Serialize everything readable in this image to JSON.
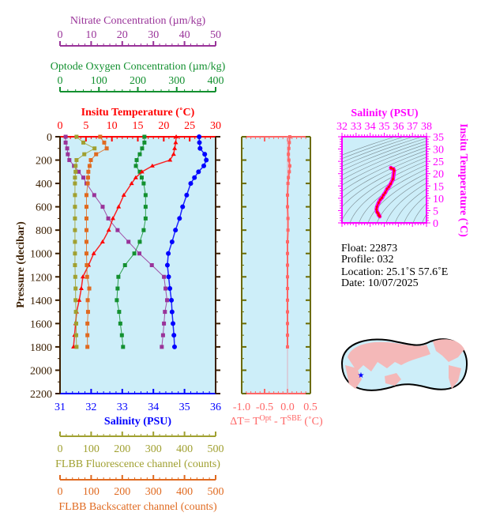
{
  "colors": {
    "nitrate": "#993399",
    "oxygen": "#139030",
    "temperature": "#ff0000",
    "salinity": "#0000ff",
    "fluorescence": "#a0a030",
    "backscatter": "#e06a20",
    "delta_t": "#ff6666",
    "ts": "#ff00ff",
    "pressure_axis": "#3a1e00",
    "dt_side_axis": "#6b6b00",
    "plot_background": "#cdeef9",
    "land": "#f4b8b8",
    "float_marker": "#0000ff"
  },
  "info": {
    "float": "Float:  22873",
    "profile": "Profile:  032",
    "location": "Location:  25.1˚S  57.6˚E",
    "date": "Date:  10/07/2025"
  },
  "map": {
    "marker_icon": "star-icon",
    "float_lat": -25.1,
    "float_lon": 57.6
  },
  "chart_data": [
    {
      "type": "line",
      "y_axis": {
        "label": "Pressure (decibar)",
        "range": [
          0,
          2200
        ],
        "reversed": true,
        "ticks": [
          0,
          200,
          400,
          600,
          800,
          1000,
          1200,
          1400,
          1600,
          1800,
          2000,
          2200
        ]
      },
      "pressure": [
        0,
        50,
        100,
        150,
        200,
        250,
        300,
        350,
        400,
        500,
        600,
        700,
        800,
        900,
        1000,
        1100,
        1200,
        1300,
        1400,
        1500,
        1600,
        1700,
        1800
      ],
      "series": [
        {
          "name": "Nitrate Concentration (µm/kg)",
          "key": "nitrate",
          "axis": "top",
          "range": [
            0,
            50
          ],
          "ticks": [
            0,
            10,
            20,
            30,
            40,
            50
          ],
          "values": [
            1.8,
            1.8,
            2.3,
            2.5,
            3,
            4.5,
            6,
            7.5,
            8.5,
            11,
            13.7,
            15.5,
            18.5,
            22,
            25.5,
            29.5,
            33.4,
            33.9,
            34.4,
            33.7,
            33.4,
            33.1,
            32.7
          ]
        },
        {
          "name": "Optode Oxygen Concentration (µm/kg)",
          "key": "oxygen",
          "axis": "top",
          "range": [
            0,
            400
          ],
          "ticks": [
            0,
            100,
            200,
            300,
            400
          ],
          "values": [
            217,
            217,
            211,
            205,
            197,
            195,
            205,
            210,
            215,
            220,
            220,
            220,
            215,
            205,
            191,
            167,
            150,
            148,
            146,
            152,
            155,
            159,
            162
          ]
        },
        {
          "name": "Insitu Temperature (˚C)",
          "key": "temperature",
          "axis": "top",
          "range": [
            0,
            30
          ],
          "ticks": [
            0,
            5,
            10,
            15,
            20,
            25,
            30
          ],
          "values": [
            22.4,
            22.3,
            22.1,
            21.9,
            21.2,
            17.8,
            15.8,
            14.6,
            13.8,
            12.3,
            11.3,
            10.2,
            9.4,
            8.2,
            6.5,
            5.5,
            4.4,
            4.1,
            3.7,
            3.2,
            3.0,
            2.8,
            2.6
          ]
        },
        {
          "name": "Salinity (PSU)",
          "key": "salinity",
          "axis": "bottom",
          "range": [
            31,
            36
          ],
          "ticks": [
            31,
            32,
            33,
            34,
            35,
            36
          ],
          "values": [
            35.47,
            35.48,
            35.5,
            35.65,
            35.7,
            35.62,
            35.45,
            35.32,
            35.2,
            35.07,
            34.94,
            34.84,
            34.71,
            34.6,
            34.48,
            34.45,
            34.49,
            34.53,
            34.58,
            34.6,
            34.63,
            34.66,
            34.68
          ]
        },
        {
          "name": "FLBB Fluorescence channel (counts)",
          "key": "fluorescence",
          "axis": "bottom",
          "range": [
            0,
            500
          ],
          "ticks": [
            0,
            100,
            200,
            300,
            400,
            500
          ],
          "values": [
            53,
            75,
            111,
            78,
            53,
            50,
            50,
            48,
            48,
            48,
            48,
            48,
            48,
            48,
            48,
            48,
            49,
            50,
            50,
            51,
            52,
            52,
            53
          ]
        },
        {
          "name": "FLBB Backscatter channel (counts)",
          "key": "backscatter",
          "axis": "bottom",
          "range": [
            0,
            500
          ],
          "ticks": [
            0,
            100,
            200,
            300,
            400,
            500
          ],
          "values": [
            129,
            142,
            150,
            116,
            99,
            95,
            91,
            90,
            89,
            85,
            85,
            85,
            85,
            85,
            85,
            86,
            87,
            94,
            89,
            90,
            88,
            88,
            88
          ]
        }
      ]
    },
    {
      "type": "line",
      "x_axis": {
        "label_prefix": "ΔT= T",
        "label_sup1": "Opt",
        "label_mid": " - T",
        "label_sup2": "SBE",
        "label_suffix": " (˚C)",
        "range": [
          -1.0,
          0.5
        ],
        "ticks": [
          "-1.0",
          "-0.5",
          "0.0",
          "0.5"
        ]
      },
      "y_axis": {
        "range": [
          0,
          2200
        ],
        "reversed": true
      },
      "pressure": [
        0,
        50,
        100,
        150,
        200,
        250,
        300,
        350,
        400,
        500,
        600,
        700,
        800,
        900,
        1000,
        1100,
        1200,
        1300,
        1400,
        1500,
        1600,
        1700,
        1800
      ],
      "values": [
        0.05,
        0.04,
        0.03,
        0.02,
        0.03,
        0.05,
        0.04,
        0.02,
        0.01,
        0.0,
        0.0,
        0.01,
        0.01,
        0.0,
        0.0,
        0.0,
        0.0,
        0.0,
        0.0,
        0.0,
        0.0,
        0.0,
        0.0
      ]
    },
    {
      "type": "scatter",
      "title": "Salinity (PSU)",
      "x_axis": {
        "label": "Salinity (PSU)",
        "range": [
          32,
          38
        ],
        "ticks": [
          32,
          33,
          34,
          35,
          36,
          37,
          38
        ]
      },
      "y_axis": {
        "label": "Insitu Temperature (˚C)",
        "range": [
          0,
          35
        ],
        "ticks": [
          0,
          5,
          10,
          15,
          20,
          25,
          30,
          35
        ]
      },
      "density_contours": true,
      "uses_profile_series": [
        "salinity",
        "temperature"
      ]
    }
  ]
}
